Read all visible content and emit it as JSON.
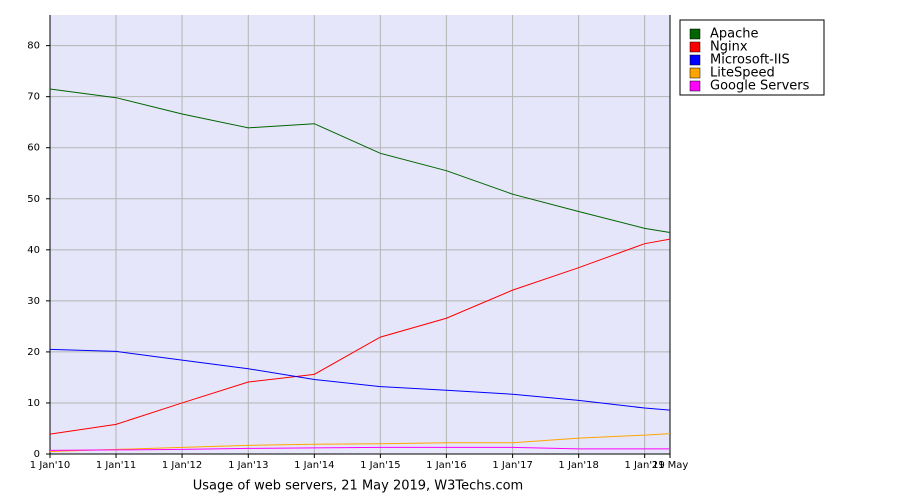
{
  "chart_data": {
    "type": "line",
    "title": "Usage of web servers, 21 May 2019, W3Techs.com",
    "x": [
      "2010-01-01",
      "2011-01-01",
      "2012-01-01",
      "2013-01-01",
      "2014-01-01",
      "2015-01-01",
      "2016-01-01",
      "2017-01-01",
      "2018-01-01",
      "2019-01-01",
      "2019-05-21"
    ],
    "series": [
      {
        "name": "Apache",
        "color": "#006400",
        "values": [
          71.5,
          69.8,
          66.6,
          63.9,
          64.7,
          58.9,
          55.5,
          50.9,
          47.5,
          44.2,
          43.4
        ]
      },
      {
        "name": "Nginx",
        "color": "#ff0000",
        "values": [
          3.9,
          5.8,
          10.0,
          14.1,
          15.6,
          22.9,
          26.6,
          32.1,
          36.5,
          41.2,
          42.1
        ]
      },
      {
        "name": "Microsoft-IIS",
        "color": "#0000ff",
        "values": [
          20.5,
          20.1,
          18.4,
          16.7,
          14.6,
          13.2,
          12.5,
          11.7,
          10.5,
          9.0,
          8.6
        ]
      },
      {
        "name": "LiteSpeed",
        "color": "#ffa500",
        "values": [
          0.5,
          0.9,
          1.3,
          1.7,
          1.9,
          2.0,
          2.2,
          2.2,
          3.1,
          3.7,
          4.0
        ]
      },
      {
        "name": "Google Servers",
        "color": "#ff00ff",
        "values": [
          0.7,
          0.8,
          0.9,
          1.1,
          1.2,
          1.3,
          1.3,
          1.3,
          1.0,
          1.0,
          1.0
        ]
      }
    ],
    "xlim": [
      "2010-01-01",
      "2019-05-21"
    ],
    "xticks": [
      {
        "value": "2010-01-01",
        "label": "1 Jan'10"
      },
      {
        "value": "2011-01-01",
        "label": "1 Jan'11"
      },
      {
        "value": "2012-01-01",
        "label": "1 Jan'12"
      },
      {
        "value": "2013-01-01",
        "label": "1 Jan'13"
      },
      {
        "value": "2014-01-01",
        "label": "1 Jan'14"
      },
      {
        "value": "2015-01-01",
        "label": "1 Jan'15"
      },
      {
        "value": "2016-01-01",
        "label": "1 Jan'16"
      },
      {
        "value": "2017-01-01",
        "label": "1 Jan'17"
      },
      {
        "value": "2018-01-01",
        "label": "1 Jan'18"
      },
      {
        "value": "2019-01-01",
        "label": "1 Jan'19"
      },
      {
        "value": "2019-05-21",
        "label": "21 May"
      }
    ],
    "ylim": [
      0,
      86
    ],
    "yticks": [
      0,
      10,
      20,
      30,
      40,
      50,
      60,
      70,
      80
    ],
    "grid": true,
    "legend": "right"
  }
}
